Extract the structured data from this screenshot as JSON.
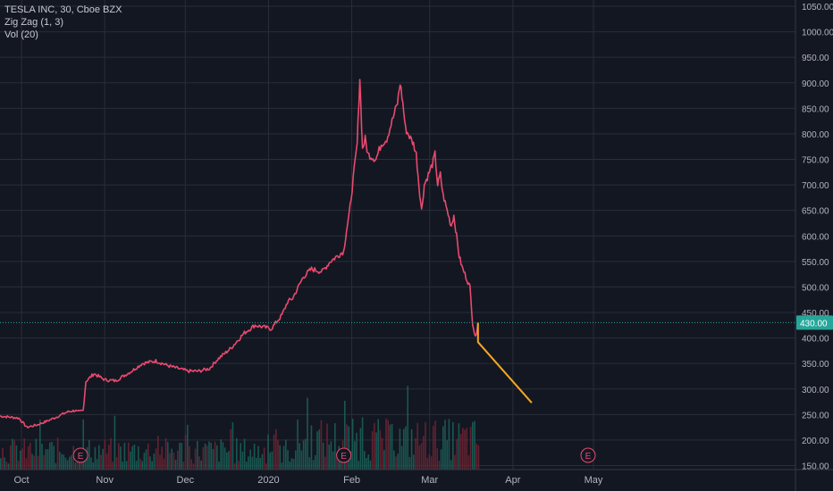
{
  "legend": {
    "symbol": "TESLA INC, 30, Cboe BZX",
    "indicator_zigzag": "Zig Zag (1, 3)",
    "indicator_volume": "Vol (20)"
  },
  "colors": {
    "background": "#131722",
    "grid": "#2a2e39",
    "price_line": "#e84a6e",
    "zigzag": "#f5a623",
    "last_price_badge": "#26a69a",
    "axis_text": "#b2b5be",
    "volume_up": "#1b5e57",
    "volume_down": "#6b2433",
    "earnings_marker": "#e84a6e"
  },
  "chart_data": {
    "type": "line",
    "y_axis_ticks": [
      "1050.00",
      "1000.00",
      "950.00",
      "900.00",
      "850.00",
      "800.00",
      "750.00",
      "700.00",
      "650.00",
      "600.00",
      "550.00",
      "500.00",
      "450.00",
      "400.00",
      "350.00",
      "300.00",
      "250.00",
      "200.00",
      "150.00"
    ],
    "ylim": [
      150,
      1050
    ],
    "x_axis_labels": [
      "Oct",
      "Nov",
      "Dec",
      "2020",
      "Feb",
      "Mar",
      "Apr",
      "May"
    ],
    "last_price": "430.00",
    "earnings_marker_label": "E",
    "series": [
      {
        "x": [
          "2019-09-23",
          "2019-09-30",
          "2019-10-03",
          "2019-10-07",
          "2019-10-10",
          "2019-10-14",
          "2019-10-18",
          "2019-10-21",
          "2019-10-22",
          "2019-10-24",
          "2019-10-25",
          "2019-10-28",
          "2019-11-01",
          "2019-11-05",
          "2019-11-11",
          "2019-11-15",
          "2019-11-20",
          "2019-11-25",
          "2019-12-02",
          "2019-12-06",
          "2019-12-10",
          "2019-12-13",
          "2019-12-18",
          "2019-12-23",
          "2019-12-27",
          "2020-01-02",
          "2020-01-06",
          "2020-01-08",
          "2020-01-10",
          "2020-01-14",
          "2020-01-17",
          "2020-01-21",
          "2020-01-24",
          "2020-01-29",
          "2020-01-30",
          "2020-01-31",
          "2020-02-03",
          "2020-02-04",
          "2020-02-05",
          "2020-02-06",
          "2020-02-07",
          "2020-02-10",
          "2020-02-12",
          "2020-02-14",
          "2020-02-18",
          "2020-02-19",
          "2020-02-20",
          "2020-02-21",
          "2020-02-24",
          "2020-02-25",
          "2020-02-26",
          "2020-02-27",
          "2020-02-28",
          "2020-03-02",
          "2020-03-03",
          "2020-03-04",
          "2020-03-05",
          "2020-03-06",
          "2020-03-09",
          "2020-03-10",
          "2020-03-11",
          "2020-03-12",
          "2020-03-13",
          "2020-03-16",
          "2020-03-17",
          "2020-03-18",
          "2020-03-19"
        ],
        "values": [
          247,
          243,
          225,
          230,
          236,
          245,
          255,
          258,
          255,
          258,
          315,
          330,
          318,
          316,
          335,
          350,
          355,
          345,
          335,
          335,
          340,
          358,
          380,
          410,
          425,
          418,
          445,
          470,
          478,
          520,
          535,
          530,
          550,
          570,
          610,
          640,
          780,
          910,
          770,
          790,
          760,
          750,
          780,
          790,
          860,
          900,
          860,
          810,
          780,
          760,
          700,
          650,
          700,
          740,
          760,
          700,
          720,
          680,
          620,
          640,
          600,
          560,
          540,
          500,
          430,
          400,
          430
        ]
      }
    ],
    "zigzag": {
      "x": [
        "2020-03-19",
        "2020-04-08"
      ],
      "values": [
        392,
        273
      ]
    }
  }
}
